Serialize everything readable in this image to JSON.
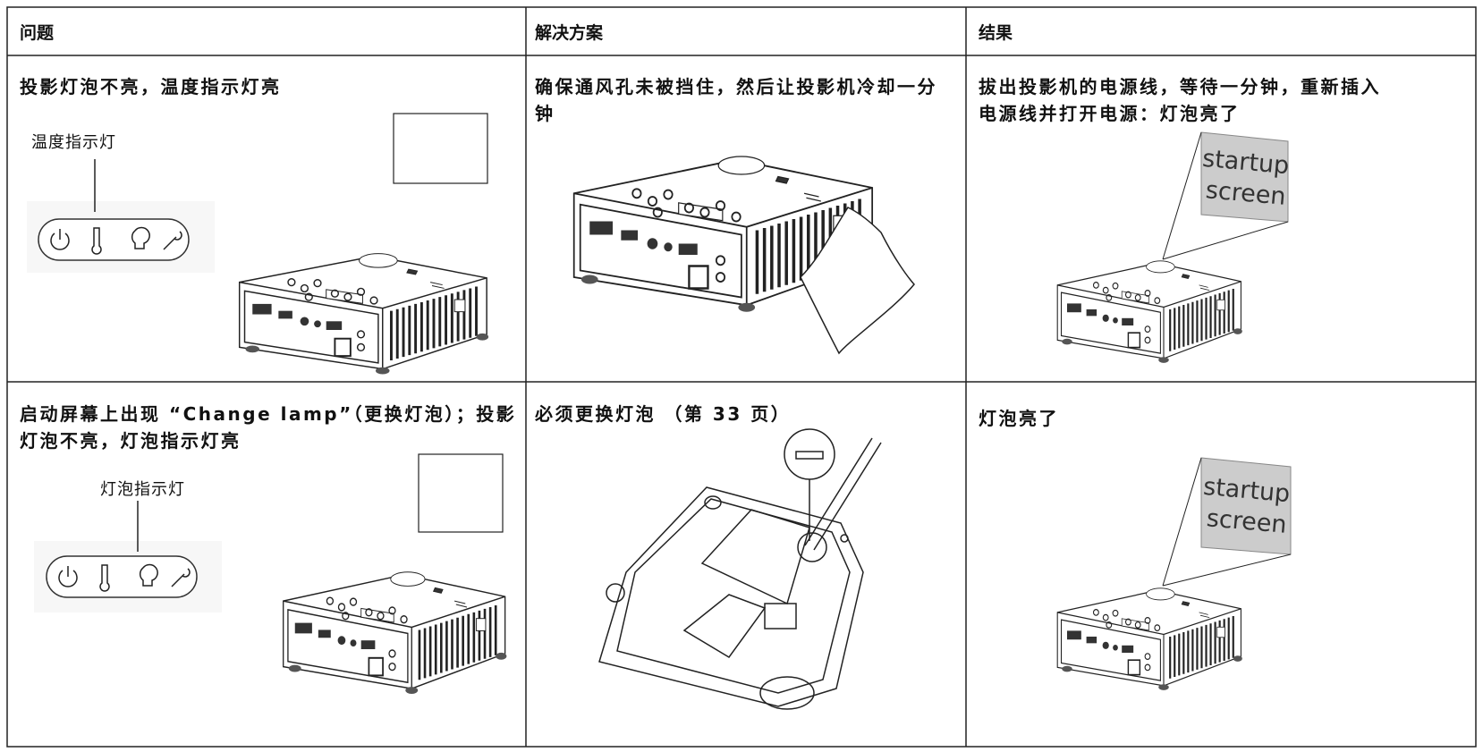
{
  "table": {
    "header": [
      "问题",
      "解决方案",
      "结果"
    ],
    "rows": [
      {
        "problem": "投影灯泡不亮，温度指示灯亮",
        "indicator_label": "温度指示灯",
        "solution": "确保通风孔未被挡住，然后让投影机冷却一分钟",
        "result": "拔出投影机的电源线，等待一分钟，重新插入电源线并打开电源：灯泡亮了",
        "screen_text": [
          "startup",
          "screen"
        ]
      },
      {
        "problem": "启动屏幕上出现 “Change lamp”（更换灯泡）；投影灯泡不亮，灯泡指示灯亮",
        "indicator_label": "灯泡指示灯",
        "solution": "必须更换灯泡 （第 33 页）",
        "result": "灯泡亮了",
        "screen_text": [
          "startup",
          "screen"
        ]
      }
    ]
  }
}
